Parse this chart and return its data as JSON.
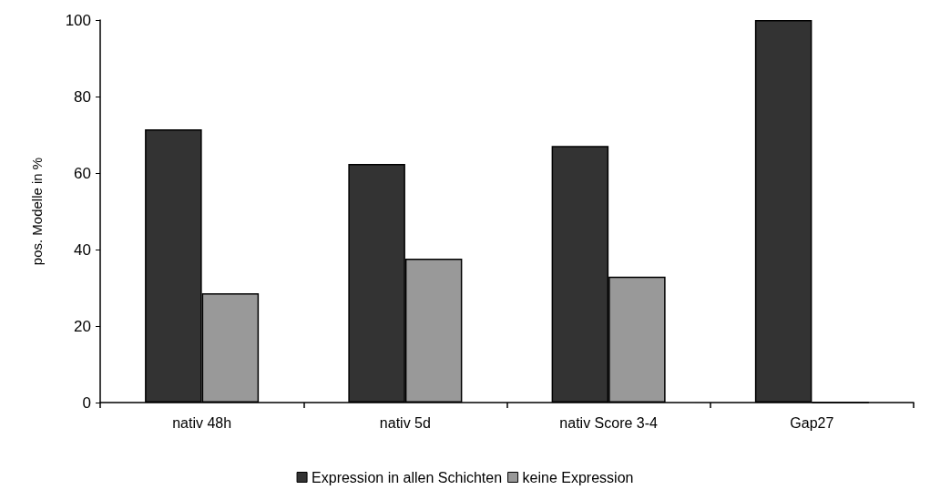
{
  "chart_data": {
    "type": "bar",
    "ylabel": "pos. Modelle in %",
    "categories": [
      "nativ 48h",
      "nativ 5d",
      "nativ Score 3-4",
      "Gap27"
    ],
    "series": [
      {
        "name": "Expression in allen Schichten",
        "color": "#333333",
        "values": [
          71.4,
          62.4,
          67.1,
          100
        ]
      },
      {
        "name": "keine Expression",
        "color": "#999999",
        "values": [
          28.6,
          37.6,
          32.9,
          0
        ]
      }
    ],
    "ylim": [
      0,
      100
    ],
    "yticks": [
      0,
      20,
      40,
      60,
      80,
      100
    ],
    "grid": false,
    "legend": "bottom"
  }
}
